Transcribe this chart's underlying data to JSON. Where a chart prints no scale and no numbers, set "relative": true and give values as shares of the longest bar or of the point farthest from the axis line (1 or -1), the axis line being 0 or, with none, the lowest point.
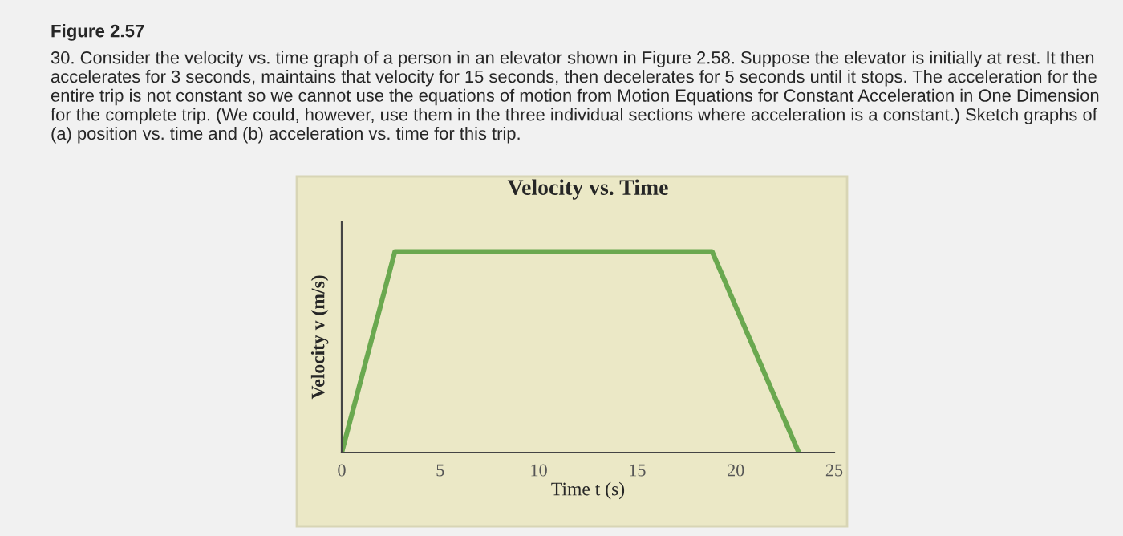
{
  "chart_data": {
    "type": "line",
    "relative": true,
    "title": "Velocity vs. Time",
    "xlabel": "Time t (s)",
    "ylabel": "Velocity v (m/s)",
    "annotations": [
      "Figure 2.57",
      "30. Consider the velocity vs. time graph of a person in an elevator shown in Figure 2.58. Suppose the elevator is initially at rest. It then accelerates for 3 seconds, maintains that velocity for 15 seconds, then decelerates for 5 seconds until it stops. The acceleration for the entire trip is not constant so we cannot use the equations of motion from Motion Equations for Constant Acceleration in One Dimension for the complete trip. (We could, however, use them in the three individual sections where acceleration is a constant.) Sketch graphs of (a) position vs. time and (b) acceleration vs. time for this trip."
    ],
    "series": [
      {
        "color": "#6aa84f",
        "x": [
          0,
          2.7,
          18.8,
          23.2
        ],
        "values": [
          0,
          1,
          1,
          0
        ]
      }
    ],
    "xlim": [
      0,
      25
    ],
    "xticks": [
      0,
      5,
      10,
      15,
      20,
      25
    ],
    "grid": false,
    "marker": "none",
    "line_style": "solid"
  }
}
